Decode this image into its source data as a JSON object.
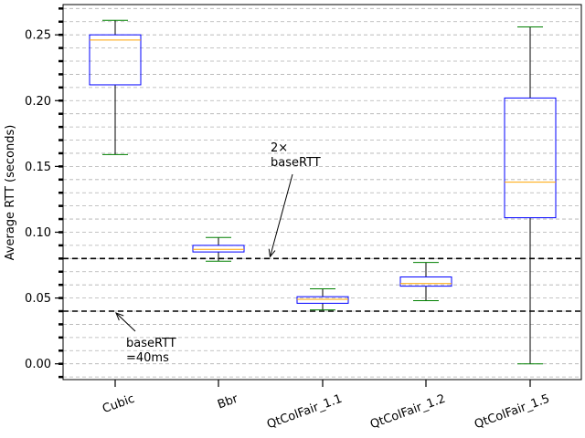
{
  "chart_data": {
    "type": "boxplot",
    "title": "",
    "xlabel": "",
    "ylabel": "Average RTT (seconds)",
    "ylim": [
      -0.012,
      0.273
    ],
    "yticks": [
      0.0,
      0.05,
      0.1,
      0.15,
      0.2,
      0.25
    ],
    "ytick_labels": [
      "0.00",
      "0.05",
      "0.10",
      "0.15",
      "0.20",
      "0.25"
    ],
    "categories": [
      "Cubic",
      "Bbr",
      "QtColFair_1.1",
      "QtColFair_1.2",
      "QtColFair_1.5"
    ],
    "boxes": [
      {
        "label": "Cubic",
        "whisker_low": 0.159,
        "q1": 0.212,
        "median": 0.246,
        "q3": 0.25,
        "whisker_high": 0.261
      },
      {
        "label": "Bbr",
        "whisker_low": 0.078,
        "q1": 0.085,
        "median": 0.087,
        "q3": 0.09,
        "whisker_high": 0.096
      },
      {
        "label": "QtColFair_1.1",
        "whisker_low": 0.041,
        "q1": 0.046,
        "median": 0.049,
        "q3": 0.051,
        "whisker_high": 0.057
      },
      {
        "label": "QtColFair_1.2",
        "whisker_low": 0.048,
        "q1": 0.059,
        "median": 0.061,
        "q3": 0.066,
        "whisker_high": 0.077
      },
      {
        "label": "QtColFair_1.5",
        "whisker_low": 0.0,
        "q1": 0.111,
        "median": 0.138,
        "q3": 0.202,
        "whisker_high": 0.256
      }
    ],
    "reference_lines": [
      {
        "y": 0.04,
        "style": "dashed",
        "color": "#000000"
      },
      {
        "y": 0.08,
        "style": "dashed",
        "color": "#000000"
      }
    ],
    "annotations": [
      {
        "lines": [
          "baseRTT",
          "=40ms"
        ],
        "target_x_category_index": 0,
        "target_y": 0.04
      },
      {
        "lines": [
          "2×",
          "baseRTT"
        ],
        "target_x_category_index": 1.5,
        "target_y": 0.08
      }
    ],
    "grid": "horizontal-dashed",
    "minor_grid_step": 0.01,
    "colors": {
      "box": "#0000ff",
      "median": "#ffa500",
      "whisker_cap": "#008000",
      "whisker": "#000000",
      "grid": "#b0b0b0"
    }
  }
}
